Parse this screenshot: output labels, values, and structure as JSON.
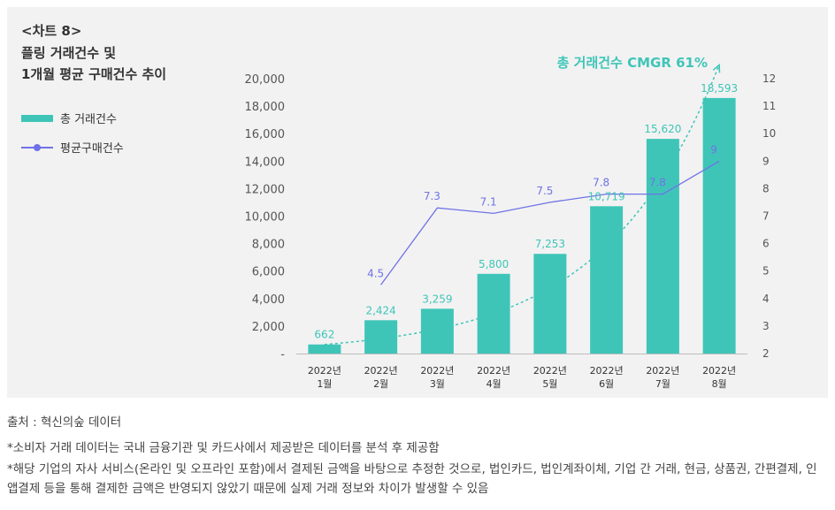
{
  "header": {
    "chart_no": "<차트 8>",
    "title_line1": "플링 거래건수 및",
    "title_line2": "1개월 평균 구매건수 추이"
  },
  "legend": {
    "bar_label": "총 거래건수",
    "line_label": "평균구매건수"
  },
  "colors": {
    "bar": "#3fc5b8",
    "line": "#6f72e6",
    "trend": "#3fc5b8",
    "panel": "#f2f2f2"
  },
  "chart_data": {
    "type": "bar",
    "categories": [
      [
        "2022년",
        "1월"
      ],
      [
        "2022년",
        "2월"
      ],
      [
        "2022년",
        "3월"
      ],
      [
        "2022년",
        "4월"
      ],
      [
        "2022년",
        "5월"
      ],
      [
        "2022년",
        "6월"
      ],
      [
        "2022년",
        "7월"
      ],
      [
        "2022년",
        "8월"
      ]
    ],
    "series": [
      {
        "name": "총 거래건수",
        "type": "bar",
        "axis": "left",
        "values": [
          662,
          2424,
          3259,
          5800,
          7253,
          10719,
          15620,
          18593
        ],
        "labels": [
          "662",
          "2,424",
          "3,259",
          "5,800",
          "7,253",
          "10,719",
          "15,620",
          "18,593"
        ]
      },
      {
        "name": "평균구매건수",
        "type": "line",
        "axis": "right",
        "values": [
          null,
          4.5,
          7.3,
          7.1,
          7.5,
          7.8,
          7.8,
          9
        ],
        "labels": [
          "",
          "4.5",
          "7.3",
          "7.1",
          "7.5",
          "7.8",
          "7.8",
          "9"
        ]
      }
    ],
    "trend": {
      "label": "총 거래건수 CMGR 61%",
      "start_value": 662,
      "end_value": 21000
    },
    "left_axis": {
      "min": 0,
      "max": 20000,
      "ticks": [
        0,
        2000,
        4000,
        6000,
        8000,
        10000,
        12000,
        14000,
        16000,
        18000,
        20000
      ],
      "tick_labels": [
        "-",
        "2,000",
        "4,000",
        "6,000",
        "8,000",
        "10,000",
        "12,000",
        "14,000",
        "16,000",
        "18,000",
        "20,000"
      ]
    },
    "right_axis": {
      "min": 2,
      "max": 12,
      "ticks": [
        2,
        3,
        4,
        5,
        6,
        7,
        8,
        9,
        10,
        11,
        12
      ],
      "tick_labels": [
        "2",
        "3",
        "4",
        "5",
        "6",
        "7",
        "8",
        "9",
        "10",
        "11",
        "12"
      ]
    }
  },
  "footer": {
    "source": "출처 : 혁신의숲 데이터",
    "note1": "*소비자 거래 데이터는 국내 금융기관 및 카드사에서 제공받은 데이터를 분석 후 제공함",
    "note2": "*해당 기업의 자사 서비스(온라인 및 오프라인 포함)에서 결제된 금액을 바탕으로 추정한 것으로, 법인카드, 법인계좌이체, 기업 간 거래, 현금, 상품권, 간편결제, 인앱결제 등을 통해 결제한 금액은 반영되지 않았기 때문에 실제 거래 정보와 차이가 발생할 수 있음"
  }
}
